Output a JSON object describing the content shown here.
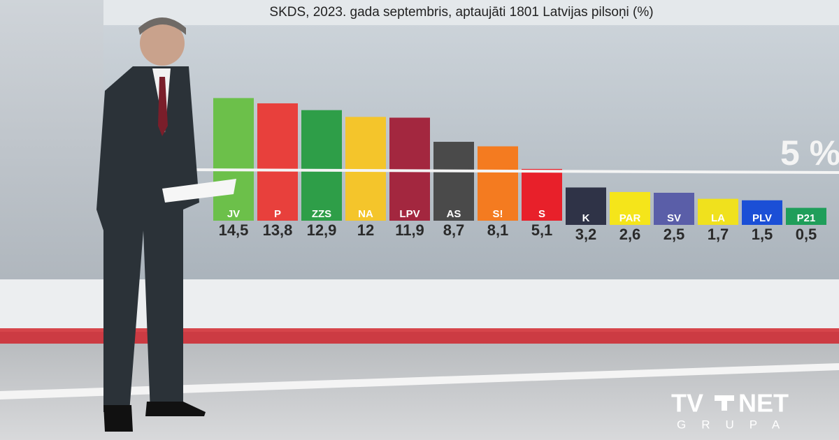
{
  "chart_data": {
    "type": "bar",
    "title": "SKDS, 2023. gada septembris, aptaujāti 1801 Latvijas pilsoņi (%)",
    "categories": [
      "JV",
      "P",
      "ZZS",
      "NA",
      "LPV",
      "AS",
      "S!",
      "S",
      "K",
      "PAR",
      "SV",
      "LA",
      "PLV",
      "P21"
    ],
    "values": [
      14.5,
      13.8,
      12.9,
      12,
      11.9,
      8.7,
      8.1,
      5.1,
      3.2,
      2.6,
      2.5,
      1.7,
      1.5,
      0.5
    ],
    "value_labels": [
      "14,5",
      "13,8",
      "12,9",
      "12",
      "11,9",
      "8,7",
      "8,1",
      "5,1",
      "3,2",
      "2,6",
      "2,5",
      "1,7",
      "1,5",
      "0,5"
    ],
    "colors": [
      "#6cc04a",
      "#e8403c",
      "#2e9e48",
      "#f4c52b",
      "#a3273f",
      "#4a4a4a",
      "#f47b20",
      "#e8202a",
      "#2f3347",
      "#f5e51a",
      "#5a5ea8",
      "#f0e11d",
      "#1b4fd6",
      "#1f9e5a"
    ],
    "label_colors": [
      "#ffffff",
      "#ffffff",
      "#ffffff",
      "#ffffff",
      "#ffffff",
      "#ffffff",
      "#ffffff",
      "#ffffff",
      "#ffffff",
      "#ffffff",
      "#ffffff",
      "#ffffff",
      "#ffffff",
      "#ffffff"
    ],
    "threshold": {
      "value": 5,
      "label": "5 %"
    }
  },
  "logo": {
    "left": "TV",
    "right": "NET",
    "sub": "GRUPA"
  }
}
